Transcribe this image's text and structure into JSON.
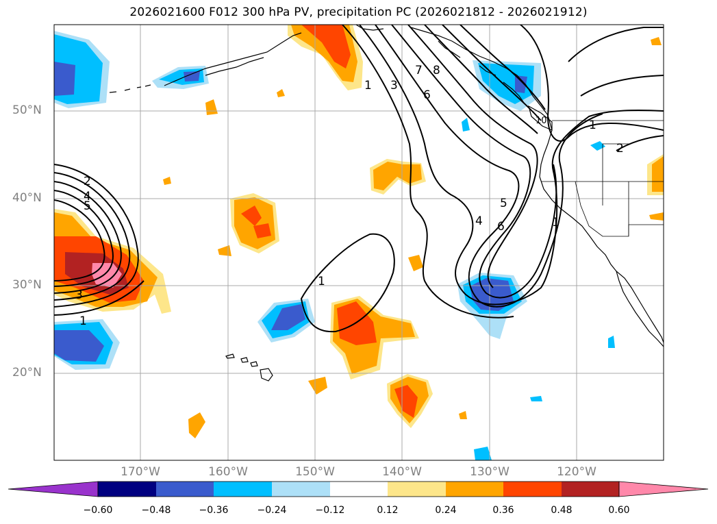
{
  "title": "2026021600 F012 300 hPa PV, precipitation PC (2026021812 - 2026021912)",
  "map": {
    "lat_labels": [
      "50°N",
      "40°N",
      "30°N",
      "20°N"
    ],
    "lon_labels": [
      "170°W",
      "160°W",
      "150°W",
      "140°W",
      "130°W",
      "120°W"
    ],
    "contour_labels": [
      "1",
      "3",
      "6",
      "7",
      "8",
      "2",
      "4",
      "5",
      "1",
      "3",
      "1",
      "1",
      "4",
      "5",
      "6",
      "1",
      "2",
      "10"
    ]
  },
  "colorbar": {
    "ticks": [
      "−0.60",
      "−0.48",
      "−0.36",
      "−0.24",
      "−0.12",
      "0.12",
      "0.24",
      "0.36",
      "0.48",
      "0.60"
    ],
    "colors": {
      "under": "#9933cc",
      "neg_060": "#000080",
      "neg_048": "#3a5bcd",
      "neg_036": "#00bfff",
      "neg_024": "#ade0f7",
      "neutral": "#ffffff",
      "pos_012": "#fde68a",
      "pos_024": "#ffa500",
      "pos_036": "#ff4500",
      "pos_048": "#b22222",
      "over": "#ff88aa"
    }
  }
}
